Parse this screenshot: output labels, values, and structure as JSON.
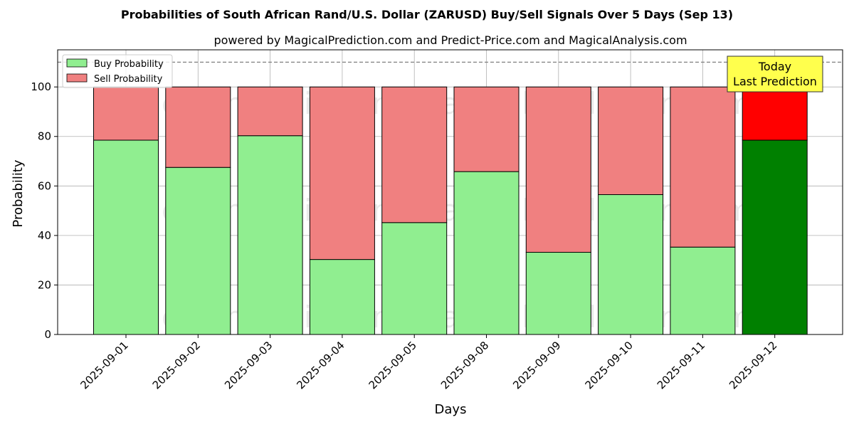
{
  "chart_data": {
    "type": "bar",
    "stacked": true,
    "title": "Probabilities of South African Rand/U.S. Dollar (ZARUSD) Buy/Sell Signals Over 5 Days (Sep 13)",
    "subtitle": "powered by MagicalPrediction.com and Predict-Price.com and MagicalAnalysis.com",
    "xlabel": "Days",
    "ylabel": "Probability",
    "ylim": [
      0,
      115
    ],
    "yticks": [
      0,
      20,
      40,
      60,
      80,
      100
    ],
    "reference_line": 110,
    "grid": true,
    "legend_position": "top-left",
    "categories": [
      "2025-09-01",
      "2025-09-02",
      "2025-09-03",
      "2025-09-04",
      "2025-09-05",
      "2025-09-08",
      "2025-09-09",
      "2025-09-10",
      "2025-09-11",
      "2025-09-12"
    ],
    "series": [
      {
        "name": "Buy Probability",
        "values": [
          78.5,
          67.5,
          80.3,
          30.3,
          45.2,
          65.8,
          33.2,
          56.5,
          35.3,
          78.5
        ],
        "color": "#90ee90",
        "highlight_color": "#008000"
      },
      {
        "name": "Sell Probability",
        "values": [
          21.5,
          32.5,
          19.7,
          69.7,
          54.8,
          34.2,
          66.8,
          43.5,
          64.7,
          21.5
        ],
        "color": "#f08080",
        "highlight_color": "#ff0000"
      }
    ],
    "highlight_index": 9,
    "annotation": {
      "line1": "Today",
      "line2": "Last Prediction",
      "color": "#ffff4d"
    },
    "watermarks": [
      "MagicalAnalysis.com",
      "MagicalPrediction.com"
    ]
  }
}
